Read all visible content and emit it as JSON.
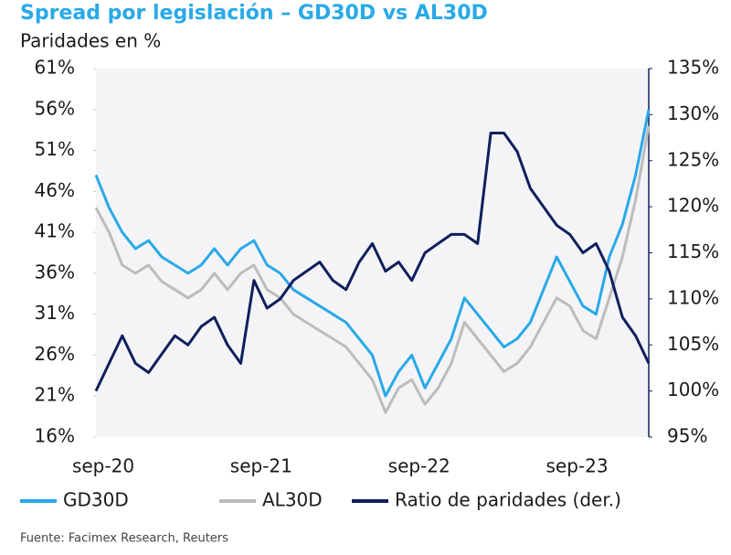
{
  "chart_data": {
    "type": "line",
    "title": "Spread por legislación – GD30D vs AL30D",
    "subtitle": "Paridades en %",
    "source": "Fuente: Facimex Research, Reuters",
    "categories": [
      "sep-20",
      null,
      null,
      null,
      null,
      null,
      null,
      null,
      null,
      null,
      null,
      null,
      "sep-21",
      null,
      null,
      null,
      null,
      null,
      null,
      null,
      null,
      null,
      null,
      null,
      "sep-22",
      null,
      null,
      null,
      null,
      null,
      null,
      null,
      null,
      null,
      null,
      null,
      "sep-23",
      null,
      null,
      null,
      null,
      null,
      null
    ],
    "ylim": [
      16,
      61
    ],
    "yticks": [
      {
        "value": 16,
        "label": "16%"
      },
      {
        "value": 21,
        "label": "21%"
      },
      {
        "value": 26,
        "label": "26%"
      },
      {
        "value": 31,
        "label": "31%"
      },
      {
        "value": 36,
        "label": "36%"
      },
      {
        "value": 41,
        "label": "41%"
      },
      {
        "value": 46,
        "label": "46%"
      },
      {
        "value": 51,
        "label": "51%"
      },
      {
        "value": 56,
        "label": "56%"
      },
      {
        "value": 61,
        "label": "61%"
      }
    ],
    "y2lim": [
      95,
      135
    ],
    "y2ticks": [
      {
        "value": 95,
        "label": "95%"
      },
      {
        "value": 100,
        "label": "100%"
      },
      {
        "value": 105,
        "label": "105%"
      },
      {
        "value": 110,
        "label": "110%"
      },
      {
        "value": 115,
        "label": "115%"
      },
      {
        "value": 120,
        "label": "120%"
      },
      {
        "value": 125,
        "label": "125%"
      },
      {
        "value": 130,
        "label": "130%"
      },
      {
        "value": 135,
        "label": "135%"
      }
    ],
    "grid": false,
    "legend": "bottom",
    "series": [
      {
        "name": "GD30D",
        "color": "#29a9e8",
        "values": [
          48,
          44,
          41,
          39,
          40,
          38,
          37,
          36,
          37,
          39,
          37,
          39,
          40,
          37,
          36,
          34,
          33,
          32,
          31,
          30,
          28,
          26,
          21,
          24,
          26,
          22,
          25,
          28,
          33,
          31,
          29,
          27,
          28,
          30,
          34,
          38,
          35,
          32,
          31,
          38,
          42,
          48,
          56
        ]
      },
      {
        "name": "AL30D",
        "color": "#bcbcbc",
        "values": [
          44,
          41,
          37,
          36,
          37,
          35,
          34,
          33,
          34,
          36,
          34,
          36,
          37,
          34,
          33,
          31,
          30,
          29,
          28,
          27,
          25,
          23,
          19,
          22,
          23,
          20,
          22,
          25,
          30,
          28,
          26,
          24,
          25,
          27,
          30,
          33,
          32,
          29,
          28,
          33,
          38,
          45,
          54
        ]
      },
      {
        "name": "Ratio de paridades (der.)",
        "color": "#0f1f5c",
        "axis": "y2",
        "values": [
          100,
          103,
          106,
          103,
          102,
          104,
          106,
          105,
          107,
          108,
          105,
          103,
          112,
          109,
          110,
          112,
          113,
          114,
          112,
          111,
          114,
          116,
          113,
          114,
          112,
          115,
          116,
          117,
          117,
          116,
          128,
          128,
          126,
          122,
          120,
          118,
          117,
          115,
          116,
          113,
          108,
          106,
          103
        ]
      }
    ]
  }
}
